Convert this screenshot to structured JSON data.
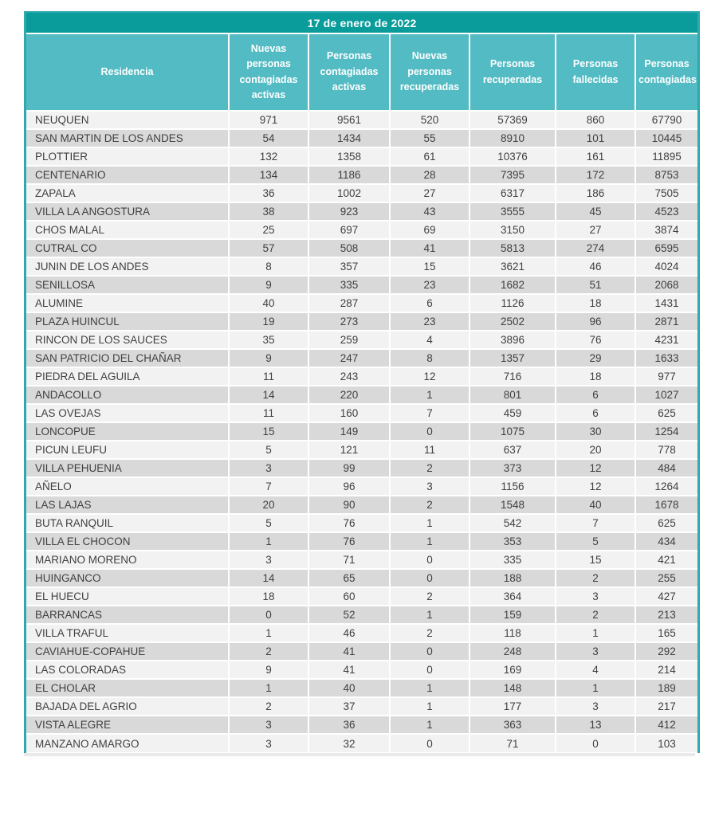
{
  "chart_data": {
    "type": "table",
    "title": "17 de enero de 2022",
    "columns": [
      "Residencia",
      "Nuevas personas contagiadas activas",
      "Personas contagiadas activas",
      "Nuevas personas recuperadas",
      "Personas recuperadas",
      "Personas fallecidas",
      "Personas contagiadas"
    ],
    "rows": [
      [
        "NEUQUEN",
        971,
        9561,
        520,
        57369,
        860,
        67790
      ],
      [
        "SAN MARTIN DE LOS ANDES",
        54,
        1434,
        55,
        8910,
        101,
        10445
      ],
      [
        "PLOTTIER",
        132,
        1358,
        61,
        10376,
        161,
        11895
      ],
      [
        "CENTENARIO",
        134,
        1186,
        28,
        7395,
        172,
        8753
      ],
      [
        "ZAPALA",
        36,
        1002,
        27,
        6317,
        186,
        7505
      ],
      [
        "VILLA LA ANGOSTURA",
        38,
        923,
        43,
        3555,
        45,
        4523
      ],
      [
        "CHOS MALAL",
        25,
        697,
        69,
        3150,
        27,
        3874
      ],
      [
        "CUTRAL CO",
        57,
        508,
        41,
        5813,
        274,
        6595
      ],
      [
        "JUNIN DE LOS ANDES",
        8,
        357,
        15,
        3621,
        46,
        4024
      ],
      [
        "SENILLOSA",
        9,
        335,
        23,
        1682,
        51,
        2068
      ],
      [
        "ALUMINE",
        40,
        287,
        6,
        1126,
        18,
        1431
      ],
      [
        "PLAZA HUINCUL",
        19,
        273,
        23,
        2502,
        96,
        2871
      ],
      [
        "RINCON DE LOS SAUCES",
        35,
        259,
        4,
        3896,
        76,
        4231
      ],
      [
        "SAN PATRICIO DEL CHAÑAR",
        9,
        247,
        8,
        1357,
        29,
        1633
      ],
      [
        "PIEDRA DEL AGUILA",
        11,
        243,
        12,
        716,
        18,
        977
      ],
      [
        "ANDACOLLO",
        14,
        220,
        1,
        801,
        6,
        1027
      ],
      [
        "LAS OVEJAS",
        11,
        160,
        7,
        459,
        6,
        625
      ],
      [
        "LONCOPUE",
        15,
        149,
        0,
        1075,
        30,
        1254
      ],
      [
        "PICUN LEUFU",
        5,
        121,
        11,
        637,
        20,
        778
      ],
      [
        "VILLA PEHUENIA",
        3,
        99,
        2,
        373,
        12,
        484
      ],
      [
        "AÑELO",
        7,
        96,
        3,
        1156,
        12,
        1264
      ],
      [
        "LAS LAJAS",
        20,
        90,
        2,
        1548,
        40,
        1678
      ],
      [
        "BUTA RANQUIL",
        5,
        76,
        1,
        542,
        7,
        625
      ],
      [
        "VILLA EL CHOCON",
        1,
        76,
        1,
        353,
        5,
        434
      ],
      [
        "MARIANO MORENO",
        3,
        71,
        0,
        335,
        15,
        421
      ],
      [
        "HUINGANCO",
        14,
        65,
        0,
        188,
        2,
        255
      ],
      [
        "EL HUECU",
        18,
        60,
        2,
        364,
        3,
        427
      ],
      [
        "BARRANCAS",
        0,
        52,
        1,
        159,
        2,
        213
      ],
      [
        "VILLA TRAFUL",
        1,
        46,
        2,
        118,
        1,
        165
      ],
      [
        "CAVIAHUE-COPAHUE",
        2,
        41,
        0,
        248,
        3,
        292
      ],
      [
        "LAS COLORADAS",
        9,
        41,
        0,
        169,
        4,
        214
      ],
      [
        "EL CHOLAR",
        1,
        40,
        1,
        148,
        1,
        189
      ],
      [
        "BAJADA DEL AGRIO",
        2,
        37,
        1,
        177,
        3,
        217
      ],
      [
        "VISTA ALEGRE",
        3,
        36,
        1,
        363,
        13,
        412
      ],
      [
        "MANZANO AMARGO",
        3,
        32,
        0,
        71,
        0,
        103
      ]
    ],
    "layout": {
      "grid": "off",
      "row_striping": "alternating",
      "numeric_alignment": "center"
    }
  },
  "colors": {
    "title-bg": "#0a9b9b",
    "header-bg": "#52bbc3",
    "border": "#2fa9b0",
    "row-odd": "#f2f2f2",
    "row-even": "#d9d9d9",
    "text": "#3f3f3f",
    "header-text": "#ffffff"
  }
}
